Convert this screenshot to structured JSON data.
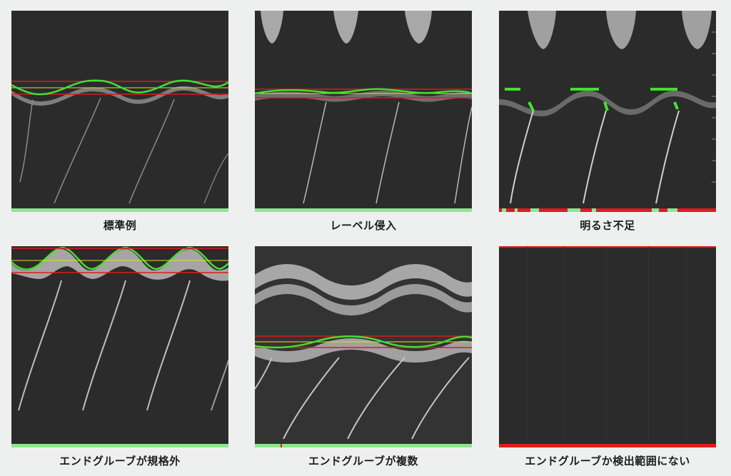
{
  "panels": [
    {
      "id": "p1",
      "caption": "標準例"
    },
    {
      "id": "p2",
      "caption": "レーベル侵入"
    },
    {
      "id": "p3",
      "caption": "明るさ不足"
    },
    {
      "id": "p4",
      "caption": "エンドグルーブが規格外"
    },
    {
      "id": "p5",
      "caption": "エンドグルーブが複数"
    },
    {
      "id": "p6",
      "caption": "エンドグルーブか検出範囲にない"
    }
  ],
  "colors": {
    "background": "#eef0f0",
    "image_dark": "#2b2b2b",
    "groove_gray": "#9a9a9a",
    "trace_green": "#43e02e",
    "limit_red": "#e01b1b",
    "center_yellow": "#e6e01a",
    "status_ok_green": "#8fe68f",
    "status_ng_red": "#e01b1b"
  }
}
